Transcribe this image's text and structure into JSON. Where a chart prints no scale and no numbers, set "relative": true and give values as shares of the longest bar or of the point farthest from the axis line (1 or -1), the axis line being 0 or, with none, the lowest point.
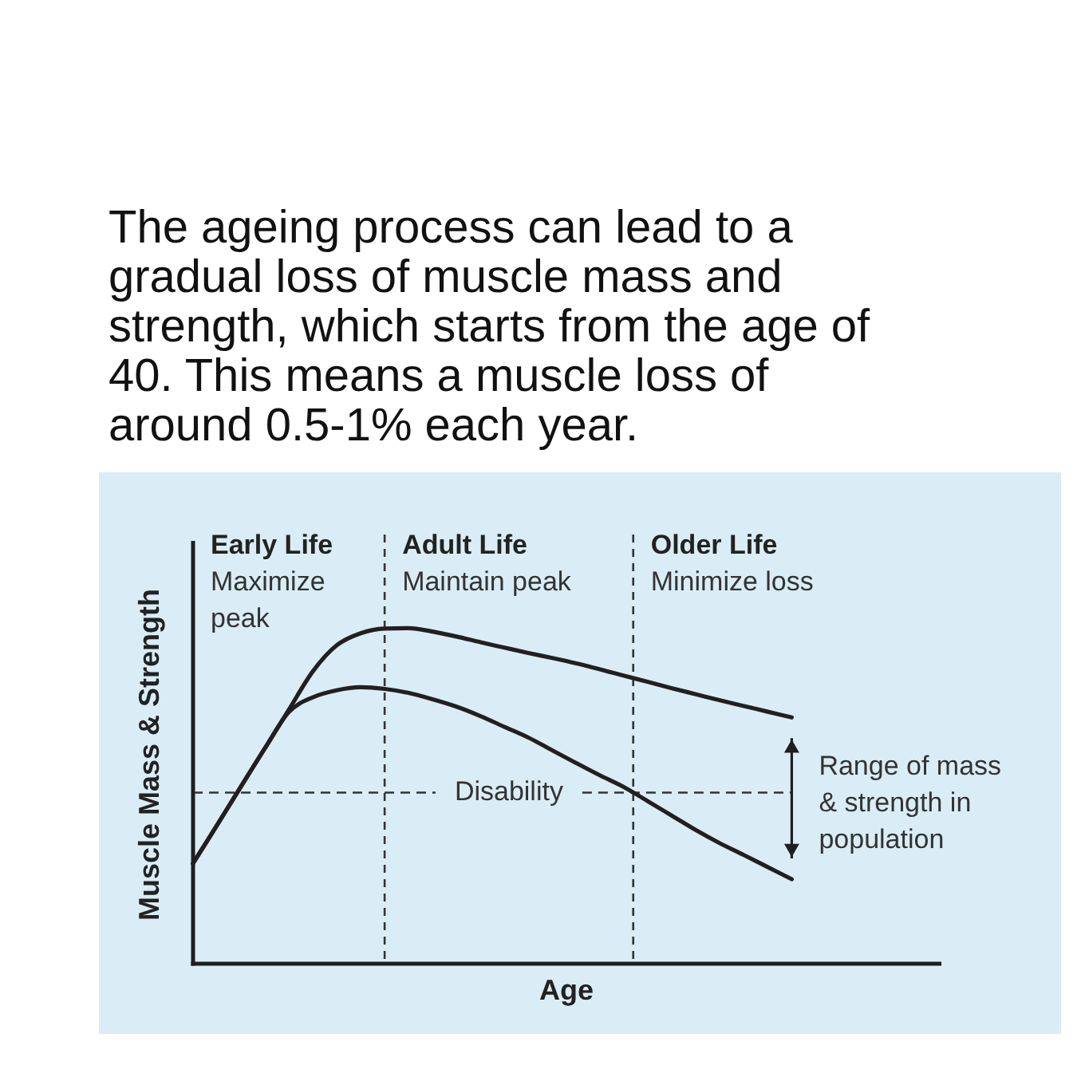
{
  "chart_data": {
    "type": "line",
    "title": "The ageing process can lead to a gradual loss of muscle mass and strength, which starts from the age of 40. This means a muscle loss of around 0.5-1% each year.",
    "xlabel": "Age",
    "ylabel": "Muscle Mass & Strength",
    "relative": true,
    "categories": [
      null,
      null,
      null,
      null,
      null,
      null,
      null,
      null,
      null,
      null,
      null,
      null,
      null,
      null,
      null,
      null,
      null,
      null,
      null,
      null,
      null,
      null,
      null,
      null,
      null,
      null
    ],
    "series": [
      {
        "color": "#231f20",
        "values": [
          0.299,
          0.413,
          0.528,
          0.642,
          0.757,
          0.871,
          0.949,
          0.985,
          0.999,
          1.0,
          0.99,
          0.975,
          0.958,
          0.942,
          0.926,
          0.911,
          0.895,
          0.877,
          0.858,
          0.84,
          0.821,
          0.803,
          0.785,
          0.768,
          0.751,
          0.734
        ]
      },
      {
        "color": "#231f20",
        "values": [
          0.299,
          0.413,
          0.528,
          0.642,
          0.75,
          0.794,
          0.815,
          0.824,
          0.819,
          0.807,
          0.788,
          0.766,
          0.738,
          0.706,
          0.674,
          0.636,
          0.598,
          0.561,
          0.526,
          0.484,
          0.441,
          0.398,
          0.359,
          0.324,
          0.288,
          0.252
        ]
      }
    ],
    "ref_lines": [
      {
        "axis": "y",
        "value": 0.51,
        "label": "Disability",
        "color": "#333333",
        "line_style": "dashed"
      }
    ],
    "annotations": [
      "Early Life",
      "Maximize peak",
      "Adult Life",
      "Maintain peak",
      "Older Life",
      "Minimize loss",
      "Range of mass & strength in population"
    ]
  }
}
